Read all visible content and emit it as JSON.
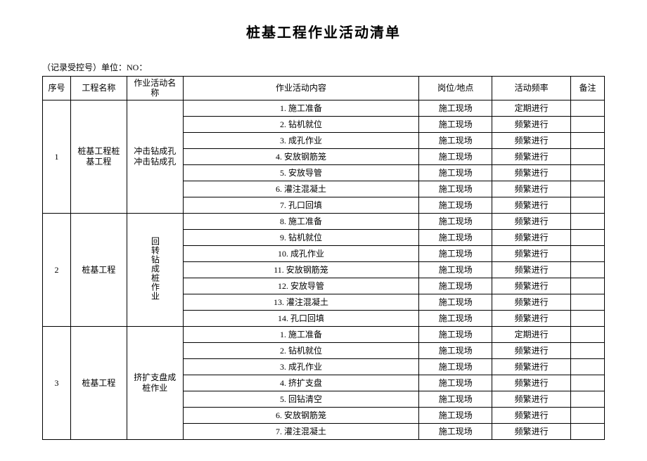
{
  "title": "桩基工程作业活动清单",
  "meta": "（记录受控号）单位：NO：",
  "headers": {
    "seq": "序号",
    "project": "工程名称",
    "activity": "作业活动名称",
    "content": "作业活动内容",
    "location": "岗位/地点",
    "frequency": "活动频率",
    "note": "备注"
  },
  "groups": [
    {
      "seq": "1",
      "project": "桩基工程桩基工程",
      "activity": "冲击钻成孔冲击钻成孔",
      "rows": [
        {
          "content": "1. 施工准备",
          "location": "施工现场",
          "frequency": "定期进行",
          "note": ""
        },
        {
          "content": "2. 钻机就位",
          "location": "施工现场",
          "frequency": "频繁进行",
          "note": ""
        },
        {
          "content": "3. 成孔作业",
          "location": "施工现场",
          "frequency": "频繁进行",
          "note": ""
        },
        {
          "content": "4. 安放钢筋笼",
          "location": "施工现场",
          "frequency": "频繁进行",
          "note": ""
        },
        {
          "content": "5. 安放导管",
          "location": "施工现场",
          "frequency": "频繁进行",
          "note": ""
        },
        {
          "content": "6. 灌注混凝土",
          "location": "施工现场",
          "frequency": "频繁进行",
          "note": ""
        },
        {
          "content": "7. 孔口回填",
          "location": "施工现场",
          "frequency": "频繁进行",
          "note": ""
        }
      ]
    },
    {
      "seq": "2",
      "project": "桩基工程",
      "activity": "回转钻成桩作业",
      "activity_vertical": true,
      "rows": [
        {
          "content": "8. 施工准备",
          "location": "施工现场",
          "frequency": "频繁进行",
          "note": ""
        },
        {
          "content": "9. 钻机就位",
          "location": "施工现场",
          "frequency": "频繁进行",
          "note": ""
        },
        {
          "content": "10. 成孔作业",
          "location": "施工现场",
          "frequency": "频繁进行",
          "note": ""
        },
        {
          "content": "11. 安放钢筋笼",
          "location": "施工现场",
          "frequency": "频繁进行",
          "note": ""
        },
        {
          "content": "12. 安放导管",
          "location": "施工现场",
          "frequency": "频繁进行",
          "note": ""
        },
        {
          "content": "13. 灌注混凝土",
          "location": "施工现场",
          "frequency": "频繁进行",
          "note": ""
        },
        {
          "content": "14. 孔口回填",
          "location": "施工现场",
          "frequency": "频繁进行",
          "note": ""
        }
      ]
    },
    {
      "seq": "3",
      "project": "桩基工程",
      "activity": "挤扩支盘成桩作业",
      "rows": [
        {
          "content": "1. 施工准备",
          "location": "施工现场",
          "frequency": "定期进行",
          "note": ""
        },
        {
          "content": "2. 钻机就位",
          "location": "施工现场",
          "frequency": "频繁进行",
          "note": ""
        },
        {
          "content": "3. 成孔作业",
          "location": "施工现场",
          "frequency": "频繁进行",
          "note": ""
        },
        {
          "content": "4. 挤扩支盘",
          "location": "施工现场",
          "frequency": "频繁进行",
          "note": ""
        },
        {
          "content": "5. 回钻清空",
          "location": "施工现场",
          "frequency": "频繁进行",
          "note": ""
        },
        {
          "content": "6. 安放钢筋笼",
          "location": "施工现场",
          "frequency": "频繁进行",
          "note": ""
        },
        {
          "content": "7. 灌注混凝土",
          "location": "施工现场",
          "frequency": "频繁进行",
          "note": ""
        }
      ]
    }
  ]
}
